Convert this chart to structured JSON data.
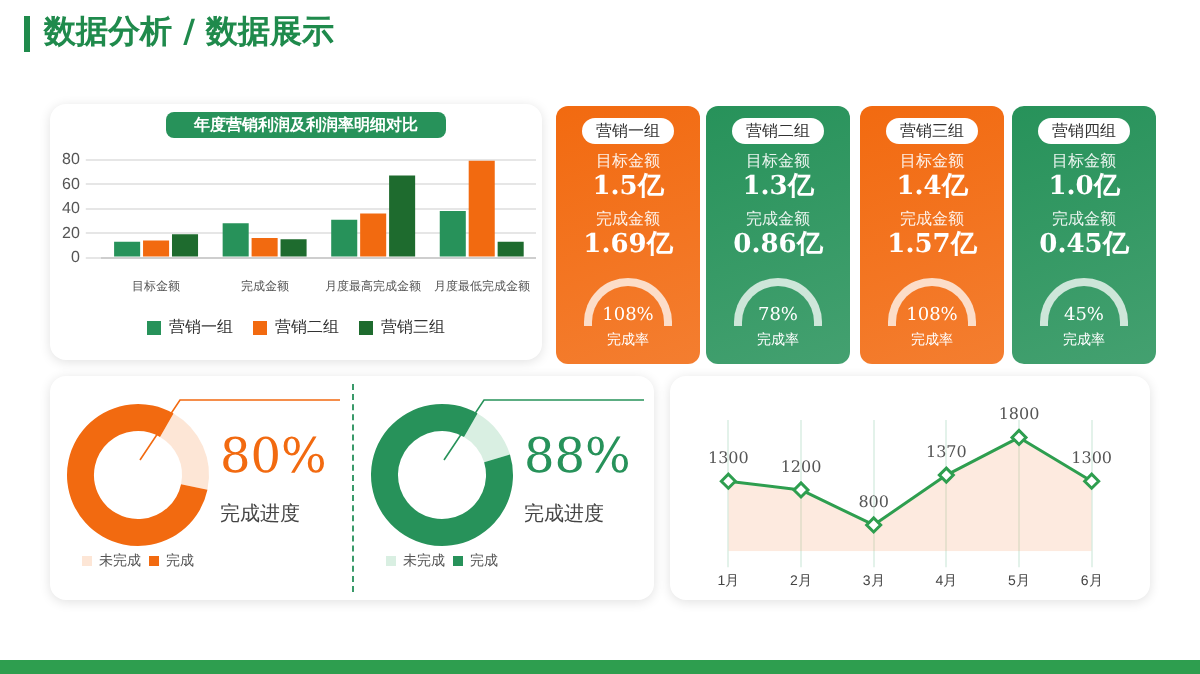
{
  "chart_data": [
    {
      "type": "other",
      "title": "数据分析 / 数据展示",
      "color": "#1f8a4c"
    },
    {
      "type": "bar",
      "title": "年度营销利润及利润率明细对比",
      "categories": [
        "目标金额",
        "完成金额",
        "月度最高完成金额",
        "月度最低完成金额"
      ],
      "series": [
        {
          "name": "营销一组",
          "color": "#27925a",
          "values": [
            13,
            28,
            31,
            38
          ]
        },
        {
          "name": "营销二组",
          "color": "#f26a10",
          "values": [
            14,
            16,
            36,
            79
          ]
        },
        {
          "name": "营销三组",
          "color": "#1e6b2e",
          "values": [
            19,
            15,
            67,
            13
          ]
        }
      ],
      "ylim": [
        0,
        80
      ],
      "yticks": [
        0,
        20,
        40,
        60,
        80
      ],
      "grid": "y",
      "legend": "bottom"
    },
    {
      "type": "other",
      "title": "营销一组",
      "color": "#f26a10",
      "annotations": [
        "目标金额",
        "1.5亿",
        "完成金额",
        "1.69亿",
        "108%",
        "完成率"
      ]
    },
    {
      "type": "other",
      "title": "营销二组",
      "color": "#27925a",
      "annotations": [
        "目标金额",
        "1.3亿",
        "完成金额",
        "0.86亿",
        "78%",
        "完成率"
      ]
    },
    {
      "type": "other",
      "title": "营销三组",
      "color": "#f26a10",
      "annotations": [
        "目标金额",
        "1.4亿",
        "完成金额",
        "1.57亿",
        "108%",
        "完成率"
      ]
    },
    {
      "type": "other",
      "title": "营销四组",
      "color": "#27925a",
      "annotations": [
        "目标金额",
        "1.0亿",
        "完成金额",
        "0.45亿",
        "45%",
        "完成率"
      ]
    },
    {
      "type": "donut",
      "categories": [
        "未完成",
        "完成"
      ],
      "values": [
        20,
        80
      ],
      "colors": [
        "#fde6d6",
        "#f26a10"
      ],
      "legend": "bottom",
      "annotations": [
        "80%",
        "完成进度"
      ]
    },
    {
      "type": "donut",
      "categories": [
        "未完成",
        "完成"
      ],
      "values": [
        12,
        88
      ],
      "colors": [
        "#d9efe2",
        "#27925a"
      ],
      "legend": "bottom",
      "annotations": [
        "88%",
        "完成进度"
      ]
    },
    {
      "type": "area",
      "categories": [
        "1月",
        "2月",
        "3月",
        "4月",
        "5月",
        "6月"
      ],
      "series": [
        {
          "color": "#2e9e4f",
          "values": [
            1300,
            1200,
            800,
            1370,
            1800,
            1300
          ]
        }
      ],
      "data_labels": true,
      "grid": "x",
      "tick_labels": "x",
      "marker": "diamond"
    }
  ]
}
